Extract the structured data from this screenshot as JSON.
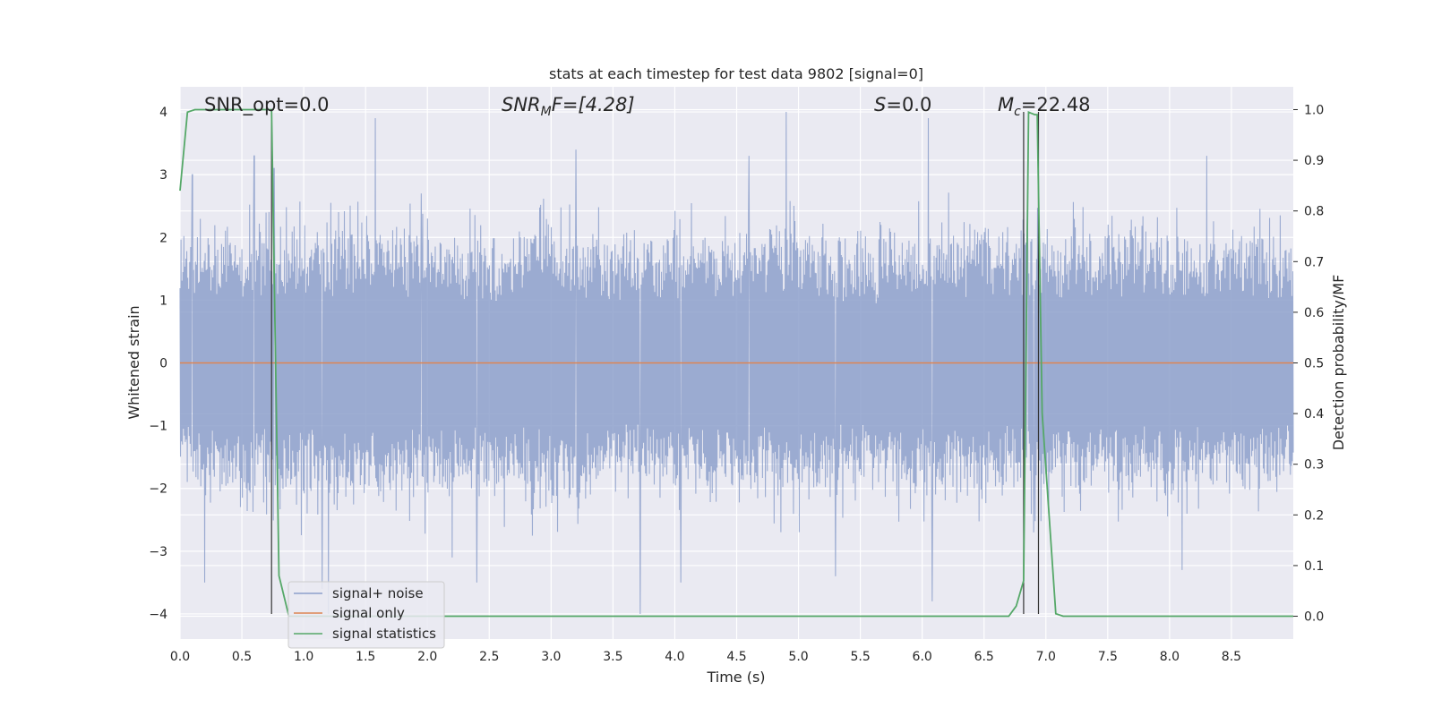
{
  "chart_data": {
    "type": "line",
    "title": "stats at each timestep for test data 9802 [signal=0]",
    "xlabel": "Time (s)",
    "ylabel": "Whitened strain",
    "y2label": "Detection probability/MF",
    "xlim": [
      0.0,
      9.0
    ],
    "ylim": [
      -4.4,
      4.4
    ],
    "y2lim": [
      -0.045,
      1.045
    ],
    "xticks": [
      0.0,
      0.5,
      1.0,
      1.5,
      2.0,
      2.5,
      3.0,
      3.5,
      4.0,
      4.5,
      5.0,
      5.5,
      6.0,
      6.5,
      7.0,
      7.5,
      8.0,
      8.5
    ],
    "xtick_labels": [
      "0.0",
      "0.5",
      "1.0",
      "1.5",
      "2.0",
      "2.5",
      "3.0",
      "3.5",
      "4.0",
      "4.5",
      "5.0",
      "5.5",
      "6.0",
      "6.5",
      "7.0",
      "7.5",
      "8.0",
      "8.5"
    ],
    "yticks": [
      4,
      3,
      2,
      1,
      0,
      -1,
      -2,
      -3,
      -4
    ],
    "ytick_labels": [
      "4",
      "3",
      "2",
      "1",
      "0",
      "−1",
      "−2",
      "−3",
      "−4"
    ],
    "y2ticks": [
      1.0,
      0.9,
      0.8,
      0.7,
      0.6,
      0.5,
      0.4,
      0.3,
      0.2,
      0.1,
      0.0
    ],
    "y2tick_labels": [
      "1.0",
      "0.9",
      "0.8",
      "0.7",
      "0.6",
      "0.5",
      "0.4",
      "0.3",
      "0.2",
      "0.1",
      "0.0"
    ],
    "grid": true,
    "legend_position": "lower-left",
    "annotations": {
      "snr_opt": "SNR_opt=0.0",
      "snr_mf_var": "SNR",
      "snr_mf_sub": "M",
      "snr_mf_rest": "F=[4.28]",
      "s_var": "S",
      "s_rest": "=0.0",
      "mc_var": "M",
      "mc_sub": "c",
      "mc_rest": "=22.48"
    },
    "vlines": [
      0.74,
      6.82,
      6.94
    ],
    "series": [
      {
        "name": "signal+ noise",
        "color": "#8da0cb",
        "kind": "noise",
        "seed": 9802,
        "count": 2304,
        "envelope": [
          [
            0.0,
            0.5,
            1.0,
            1.5,
            2.0,
            2.5,
            3.0,
            3.5,
            4.0,
            4.5,
            5.0,
            5.5,
            6.0,
            6.5,
            7.0,
            7.5,
            8.0,
            8.5,
            9.0
          ],
          [
            2.6,
            2.8,
            2.8,
            2.9,
            2.8,
            2.6,
            3.0,
            2.6,
            2.6,
            2.8,
            2.9,
            2.5,
            2.9,
            2.8,
            2.7,
            2.7,
            2.7,
            2.8,
            2.7
          ]
        ],
        "spikes": [
          [
            0.1,
            3.0
          ],
          [
            0.2,
            -3.5
          ],
          [
            0.6,
            3.3
          ],
          [
            0.76,
            3.1
          ],
          [
            1.15,
            -3.6
          ],
          [
            1.2,
            -4.0
          ],
          [
            1.58,
            3.9
          ],
          [
            1.95,
            2.7
          ],
          [
            2.2,
            -3.1
          ],
          [
            2.4,
            -3.5
          ],
          [
            3.2,
            3.4
          ],
          [
            3.72,
            -4.0
          ],
          [
            4.05,
            -3.5
          ],
          [
            4.6,
            3.3
          ],
          [
            4.9,
            4.0
          ],
          [
            5.3,
            -3.4
          ],
          [
            6.05,
            3.9
          ],
          [
            6.08,
            -3.8
          ],
          [
            6.85,
            2.4
          ],
          [
            6.9,
            -2.7
          ],
          [
            8.1,
            -3.3
          ],
          [
            8.3,
            3.3
          ]
        ]
      },
      {
        "name": "signal only",
        "color": "#dd8452",
        "kind": "flat",
        "value": 0
      },
      {
        "name": "signal statistics",
        "color": "#55a868",
        "kind": "line",
        "axis": "right",
        "x": [
          0.0,
          0.06,
          0.12,
          0.5,
          0.72,
          0.74,
          0.8,
          0.88,
          1.0,
          6.7,
          6.76,
          6.82,
          6.86,
          6.91,
          6.93,
          6.97,
          7.08,
          7.14,
          9.0
        ],
        "y": [
          0.84,
          0.995,
          1.0,
          1.0,
          1.0,
          1.0,
          0.08,
          0.0,
          0.0,
          0.0,
          0.02,
          0.07,
          0.995,
          0.99,
          0.99,
          0.4,
          0.005,
          0.0,
          0.0
        ]
      }
    ]
  }
}
